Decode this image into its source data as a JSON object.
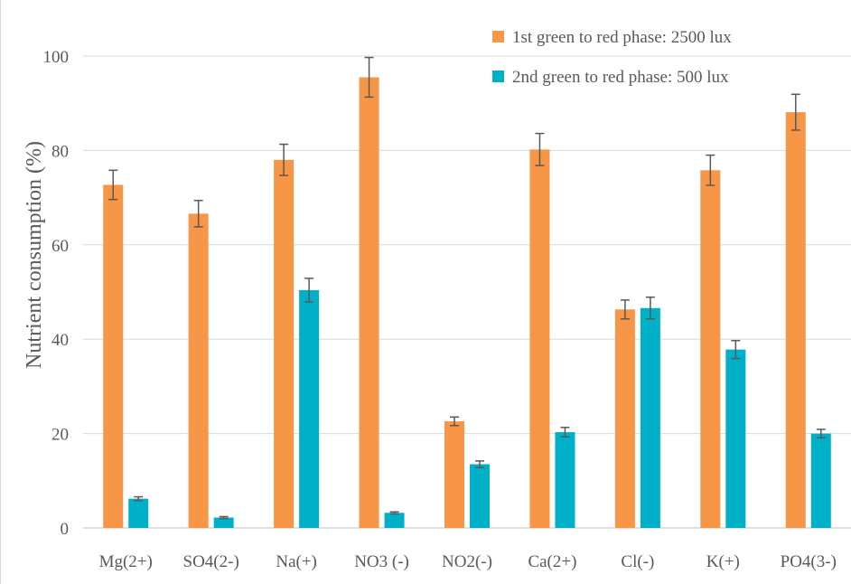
{
  "chart_data": {
    "type": "bar",
    "title": "",
    "xlabel": "",
    "ylabel": "Nutrient consumption (%)",
    "ylim": [
      0,
      100
    ],
    "yticks": [
      0,
      20,
      40,
      60,
      80,
      100
    ],
    "grid": true,
    "legend_position": "top-right",
    "categories": [
      "Mg(2+)",
      "SO4(2-)",
      "Na(+)",
      "NO3 (-)",
      "NO2(-)",
      "Ca(2+)",
      "Cl(-)",
      "K(+)",
      "PO4(3-)"
    ],
    "series": [
      {
        "name": "1st green to red phase: 2500 lux",
        "color": "#F79646",
        "values": [
          72.7,
          66.6,
          78.0,
          95.5,
          22.6,
          80.2,
          46.3,
          75.8,
          88.1
        ],
        "errors": [
          3.1,
          2.8,
          3.3,
          4.2,
          0.9,
          3.4,
          2.0,
          3.2,
          3.8
        ]
      },
      {
        "name": "2nd green to red phase: 500 lux",
        "color": "#00B0C8",
        "values": [
          6.2,
          2.2,
          50.4,
          3.2,
          13.5,
          20.3,
          46.6,
          37.8,
          20.0
        ],
        "errors": [
          0.4,
          0.2,
          2.5,
          0.2,
          0.7,
          1.0,
          2.3,
          1.9,
          0.9
        ]
      }
    ]
  }
}
